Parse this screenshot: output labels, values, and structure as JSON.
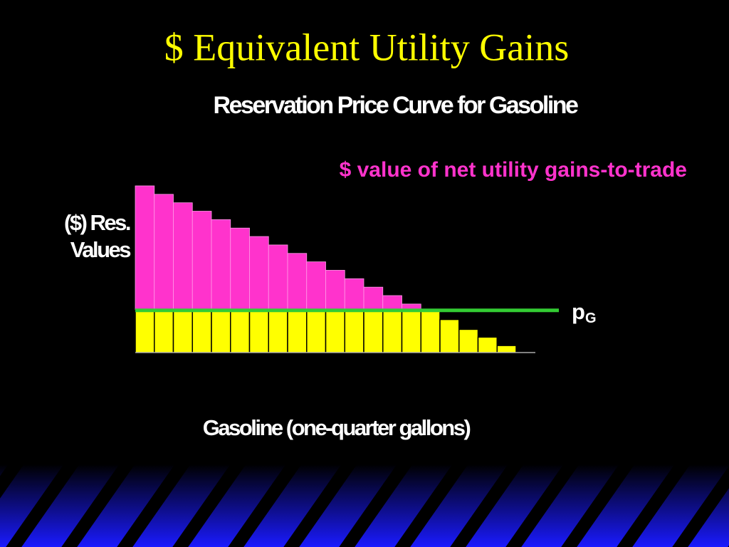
{
  "chart_data": {
    "type": "bar",
    "title": "$ Equivalent Utility Gains",
    "subtitle": "Reservation Price Curve for Gasoline",
    "annotation": "$ value of net utility gains-to-trade",
    "y_label": [
      "($) Res.",
      "Values"
    ],
    "x_label": "Gasoline (one-quarter gallons)",
    "price_label": "p",
    "price_label_subscript": "G",
    "categories": [
      null,
      null,
      null,
      null,
      null,
      null,
      null,
      null,
      null,
      null,
      null,
      null,
      null,
      null,
      null,
      null,
      null,
      null,
      null,
      null
    ],
    "values": [
      237,
      225,
      213,
      201,
      189,
      177,
      165,
      153,
      141,
      129,
      117,
      105,
      93,
      81,
      69,
      60,
      47,
      33,
      22,
      10
    ],
    "price": 60,
    "ylim": [
      0,
      240
    ],
    "gain_color": "#ff33cc",
    "cost_color": "#ffff00",
    "price_color": "#33cc33"
  }
}
